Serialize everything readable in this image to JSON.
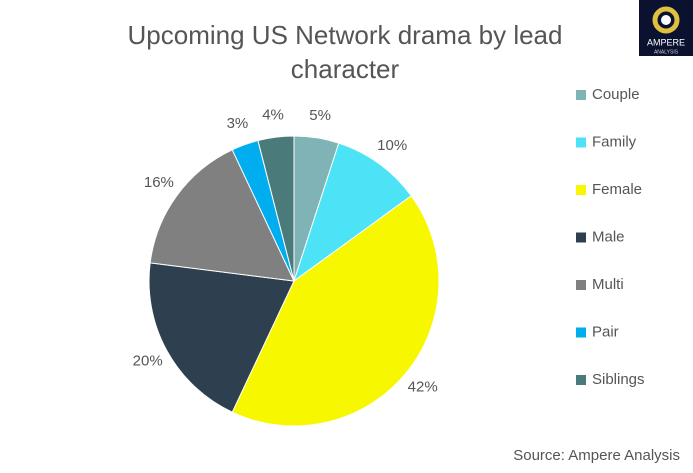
{
  "chart_data": {
    "type": "pie",
    "title": "Upcoming US Network drama by lead character",
    "categories": [
      "Couple",
      "Family",
      "Female",
      "Male",
      "Multi",
      "Pair",
      "Siblings"
    ],
    "values": [
      5,
      10,
      42,
      20,
      16,
      3,
      4
    ],
    "value_labels": [
      "5%",
      "10%",
      "42%",
      "20%",
      "16%",
      "3%",
      "4%"
    ],
    "colors": [
      "#7fb3b5",
      "#4de3f7",
      "#f7f700",
      "#2e4050",
      "#808080",
      "#00aeef",
      "#4a7a7a"
    ],
    "legend": "right",
    "source": "Source:  Ampere Analysis"
  },
  "logo": {
    "name": "AMPERE",
    "sub": "ANALYSIS"
  }
}
